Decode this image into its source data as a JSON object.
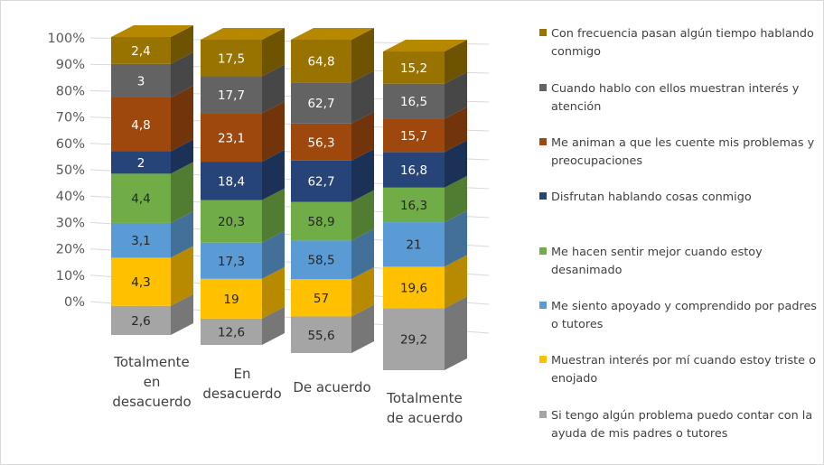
{
  "chart_data": {
    "type": "bar",
    "stacked": "percent",
    "three_d": true,
    "categories": [
      [
        "Totalmente",
        "en",
        "desacuerdo"
      ],
      [
        "En",
        "desacuerdo"
      ],
      [
        "De acuerdo"
      ],
      [
        "Totalmente",
        "de acuerdo"
      ]
    ],
    "y_ticks": [
      "0%",
      "10%",
      "20%",
      "30%",
      "40%",
      "50%",
      "60%",
      "70%",
      "80%",
      "90%",
      "100%"
    ],
    "ylim": [
      0,
      100
    ],
    "grid": true,
    "legend_position": "right",
    "series": [
      {
        "name": "Si tengo algún problema puedo contar con la ayuda de mis padres o tutores",
        "color": "#a5a5a5",
        "values": [
          2.6,
          12.6,
          55.6,
          29.2
        ]
      },
      {
        "name": "Muestran interés por mí cuando estoy triste o enojado",
        "color": "#ffc000",
        "values": [
          4.3,
          19,
          57,
          19.6
        ]
      },
      {
        "name": "Me siento apoyado y comprendido por padres o tutores",
        "color": "#5b9bd5",
        "values": [
          3.1,
          17.3,
          58.5,
          21
        ]
      },
      {
        "name": "Me hacen sentir mejor cuando estoy desanimado",
        "color": "#70ad47",
        "values": [
          4.4,
          20.3,
          58.9,
          16.3
        ]
      },
      {
        "name": "Disfrutan hablando cosas conmigo",
        "color": "#264478",
        "values": [
          2,
          18.4,
          62.7,
          16.8
        ]
      },
      {
        "name": "Me animan a que les cuente mis problemas y preocupaciones",
        "color": "#9e480e",
        "values": [
          4.8,
          23.1,
          56.3,
          15.7
        ]
      },
      {
        "name": "Cuando hablo con ellos muestran interés y atención",
        "color": "#636363",
        "values": [
          3,
          17.7,
          62.7,
          16.5
        ]
      },
      {
        "name": "Con frecuencia pasan algún tiempo hablando conmigo",
        "color": "#997300",
        "values": [
          2.4,
          17.5,
          64.8,
          15.2
        ]
      }
    ]
  }
}
